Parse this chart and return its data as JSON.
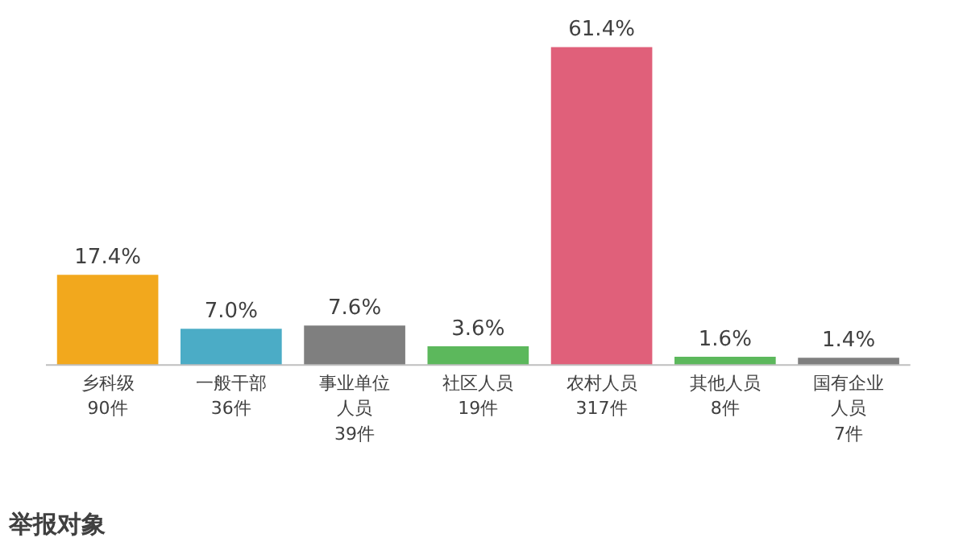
{
  "chart_data": {
    "type": "bar",
    "title": "举报对象",
    "categories": [
      "乡科级90件",
      "一般干部36件",
      "事业单位人员39件",
      "社区人员19件",
      "农村人员317件",
      "其他人员8件",
      "国有企业人员7件"
    ],
    "values": [
      17.4,
      7.0,
      7.6,
      3.6,
      61.4,
      1.6,
      1.4
    ],
    "colors": [
      "#f2a81d",
      "#4bacc6",
      "#7f7f7f",
      "#5cb85c",
      "#e0607a",
      "#5cb85c",
      "#7f7f7f"
    ],
    "value_labels": [
      "17.4%",
      "7.0%",
      "7.6%",
      "3.6%",
      "61.4%",
      "1.6%",
      "1.4%"
    ],
    "grid": false
  }
}
